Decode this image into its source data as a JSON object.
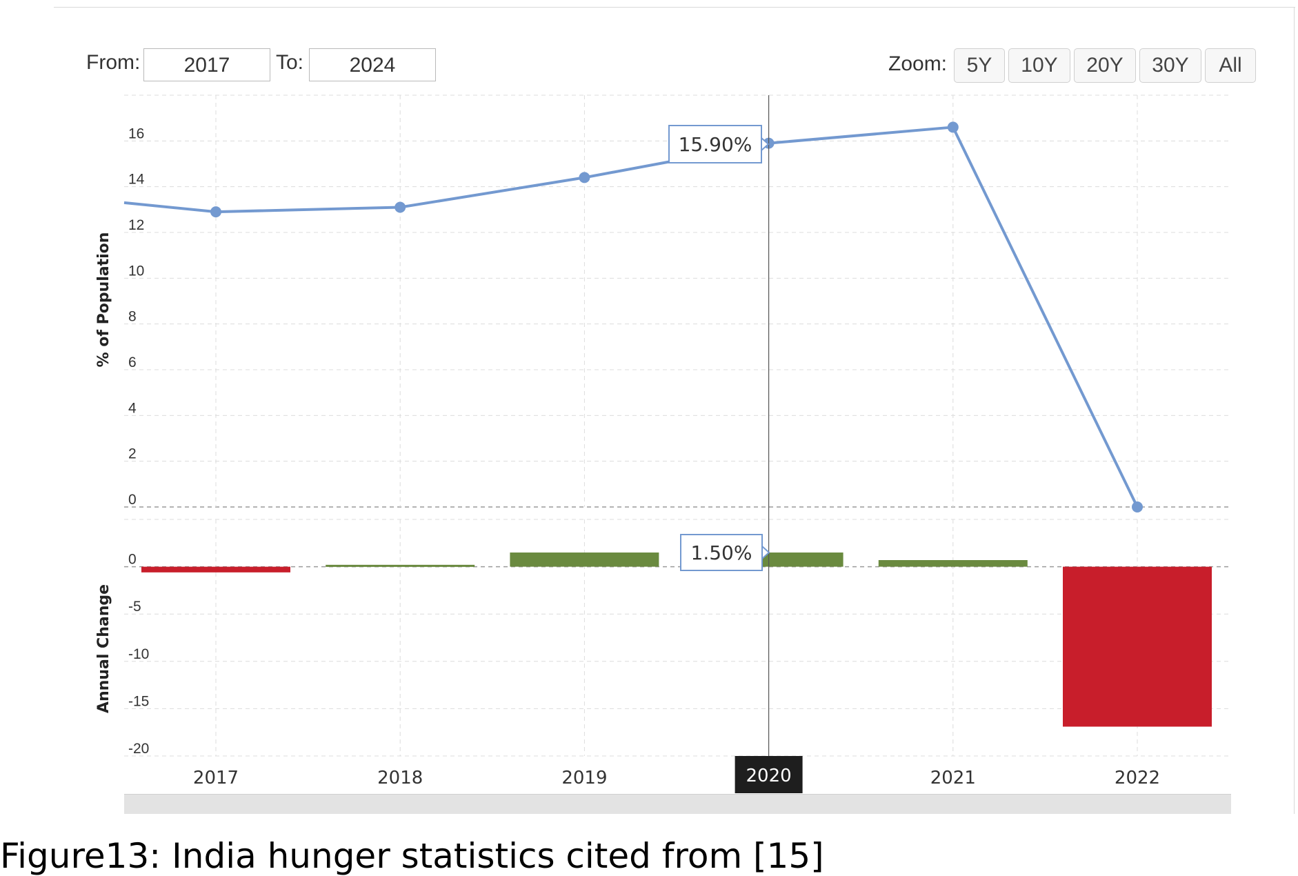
{
  "controls": {
    "from_label": "From:",
    "from_value": "2017",
    "to_label": "To:",
    "to_value": "2024",
    "zoom_label": "Zoom:",
    "zoom_options": [
      "5Y",
      "10Y",
      "20Y",
      "30Y",
      "All"
    ]
  },
  "caption": "Figure13: India hunger statistics cited from [15]",
  "chart_data": [
    {
      "type": "line",
      "x": [
        "2017",
        "2018",
        "2019",
        "2020",
        "2021",
        "2022"
      ],
      "values": [
        12.9,
        13.1,
        14.4,
        15.9,
        16.6,
        0.0
      ],
      "ylabel": "% of Population",
      "yticks": [
        0,
        2,
        4,
        6,
        8,
        10,
        12,
        14,
        16
      ],
      "ylim": [
        0,
        18
      ],
      "line_color": "#7399d0",
      "grid": true,
      "tooltip": {
        "category": "2020",
        "text": "15.90%"
      }
    },
    {
      "type": "bar",
      "x": [
        "2017",
        "2018",
        "2019",
        "2020",
        "2021",
        "2022"
      ],
      "values": [
        -0.6,
        0.2,
        1.5,
        1.5,
        0.7,
        -16.9
      ],
      "ylabel": "Annual Change",
      "yticks": [
        0,
        -5,
        -10,
        -15,
        -20
      ],
      "ylim": [
        -20,
        5
      ],
      "positive_color": "#6a8a3f",
      "negative_color": "#c81e2b",
      "grid": true,
      "tooltip": {
        "category": "2020",
        "text": "1.50%"
      }
    }
  ],
  "crosshair": {
    "category": "2020"
  }
}
